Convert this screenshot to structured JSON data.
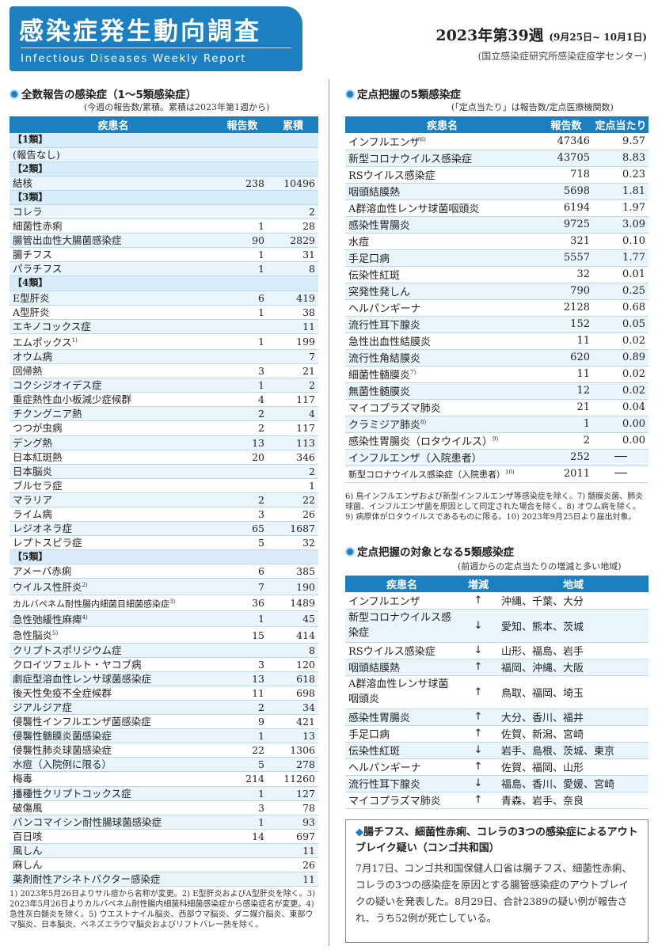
{
  "header": {
    "title_jp": "感染症発生動向調査",
    "title_en": "Infectious Diseases Weekly Report",
    "week": "2023年第39週",
    "date_range": "(9月25日~ 10月1日)",
    "institute": "(国立感染症研究所感染症疫学センター)"
  },
  "sec1": {
    "title": "全数報告の感染症（1～5類感染症）",
    "note": "(今週の報告数/累積。累積は2023年第1週から)",
    "cols": [
      "疾患名",
      "報告数",
      "累積"
    ],
    "rows": [
      {
        "n": "【1類】",
        "cat": true
      },
      {
        "n": "(報告なし)",
        "a": "",
        "b": ""
      },
      {
        "n": "【2類】",
        "cat": true
      },
      {
        "n": "結核",
        "a": "238",
        "b": "10496"
      },
      {
        "n": "【3類】",
        "cat": true
      },
      {
        "n": "コレラ",
        "a": "",
        "b": "2"
      },
      {
        "n": "細菌性赤痢",
        "a": "1",
        "b": "28"
      },
      {
        "n": "腸管出血性大腸菌感染症",
        "a": "90",
        "b": "2829"
      },
      {
        "n": "腸チフス",
        "a": "1",
        "b": "31"
      },
      {
        "n": "パラチフス",
        "a": "1",
        "b": "8"
      },
      {
        "n": "【4類】",
        "cat": true
      },
      {
        "n": "E型肝炎",
        "a": "6",
        "b": "419"
      },
      {
        "n": "A型肝炎",
        "a": "1",
        "b": "38"
      },
      {
        "n": "エキノコックス症",
        "a": "",
        "b": "11"
      },
      {
        "n": "エムポックス",
        "s": "1)",
        "a": "1",
        "b": "199"
      },
      {
        "n": "オウム病",
        "a": "",
        "b": "7"
      },
      {
        "n": "回帰熱",
        "a": "3",
        "b": "21"
      },
      {
        "n": "コクシジオイデス症",
        "a": "1",
        "b": "2"
      },
      {
        "n": "重症熱性血小板減少症候群",
        "a": "4",
        "b": "117"
      },
      {
        "n": "チクングニア熱",
        "a": "2",
        "b": "4"
      },
      {
        "n": "つつが虫病",
        "a": "2",
        "b": "117"
      },
      {
        "n": "デング熱",
        "a": "13",
        "b": "113"
      },
      {
        "n": "日本紅斑熱",
        "a": "20",
        "b": "346"
      },
      {
        "n": "日本脳炎",
        "a": "",
        "b": "2"
      },
      {
        "n": "ブルセラ症",
        "a": "",
        "b": "1"
      },
      {
        "n": "マラリア",
        "a": "2",
        "b": "22"
      },
      {
        "n": "ライム病",
        "a": "3",
        "b": "26"
      },
      {
        "n": "レジオネラ症",
        "a": "65",
        "b": "1687"
      },
      {
        "n": "レプトスピラ症",
        "a": "5",
        "b": "32"
      },
      {
        "n": "【5類】",
        "cat": true
      },
      {
        "n": "アメーバ赤痢",
        "a": "6",
        "b": "385"
      },
      {
        "n": "ウイルス性肝炎",
        "s": "2)",
        "a": "7",
        "b": "190"
      },
      {
        "n": "カルバペネム耐性腸内細菌目細菌感染症",
        "s": "3)",
        "a": "36",
        "b": "1489"
      },
      {
        "n": "急性弛緩性麻痺",
        "s": "4)",
        "a": "1",
        "b": "45"
      },
      {
        "n": "急性脳炎",
        "s": "5)",
        "a": "15",
        "b": "414"
      },
      {
        "n": "クリプトスポリジウム症",
        "a": "",
        "b": "8"
      },
      {
        "n": "クロイツフェルト・ヤコブ病",
        "a": "3",
        "b": "120"
      },
      {
        "n": "劇症型溶血性レンサ球菌感染症",
        "a": "13",
        "b": "618"
      },
      {
        "n": "後天性免疫不全症候群",
        "a": "11",
        "b": "698"
      },
      {
        "n": "ジアルジア症",
        "a": "2",
        "b": "34"
      },
      {
        "n": "侵襲性インフルエンザ菌感染症",
        "a": "9",
        "b": "421"
      },
      {
        "n": "侵襲性髄膜炎菌感染症",
        "a": "1",
        "b": "13"
      },
      {
        "n": "侵襲性肺炎球菌感染症",
        "a": "22",
        "b": "1306"
      },
      {
        "n": "水痘（入院例に限る）",
        "a": "5",
        "b": "278"
      },
      {
        "n": "梅毒",
        "a": "214",
        "b": "11260"
      },
      {
        "n": "播種性クリプトコックス症",
        "a": "1",
        "b": "127"
      },
      {
        "n": "破傷風",
        "a": "3",
        "b": "78"
      },
      {
        "n": "バンコマイシン耐性腸球菌感染症",
        "a": "1",
        "b": "93"
      },
      {
        "n": "百日咳",
        "a": "14",
        "b": "697"
      },
      {
        "n": "風しん",
        "a": "",
        "b": "11"
      },
      {
        "n": "麻しん",
        "a": "",
        "b": "26"
      },
      {
        "n": "薬剤耐性アシネトバクター感染症",
        "a": "",
        "b": "11"
      }
    ],
    "footnote": "1) 2023年5月26日よりサル痘から名称が変更。2) E型肝炎およびA型肝炎を除く。3) 2023年5月26日よりカルバペネム耐性腸内細菌科細菌感染症から感染症名が変更。4) 急性灰白髄炎を除く。5) ウエストナイル脳炎、西部ウマ脳炎、ダニ媒介脳炎、東部ウマ脳炎、日本脳炎、ベネズエラウマ脳炎およびリフトバレー熱を除く。"
  },
  "sec2": {
    "title": "定点把握の5類感染症",
    "note": "(「定点当たり」は報告数/定点医療機関数)",
    "cols": [
      "疾患名",
      "報告数",
      "定点当たり"
    ],
    "rows": [
      {
        "n": "インフルエンザ",
        "s": "6)",
        "a": "47346",
        "b": "9.57"
      },
      {
        "n": "新型コロナウイルス感染症",
        "a": "43705",
        "b": "8.83"
      },
      {
        "n": "RSウイルス感染症",
        "a": "718",
        "b": "0.23"
      },
      {
        "n": "咽頭結膜熱",
        "a": "5698",
        "b": "1.81"
      },
      {
        "n": "A群溶血性レンサ球菌咽頭炎",
        "a": "6194",
        "b": "1.97"
      },
      {
        "n": "感染性胃腸炎",
        "a": "9725",
        "b": "3.09"
      },
      {
        "n": "水痘",
        "a": "321",
        "b": "0.10"
      },
      {
        "n": "手足口病",
        "a": "5557",
        "b": "1.77"
      },
      {
        "n": "伝染性紅斑",
        "a": "32",
        "b": "0.01"
      },
      {
        "n": "突発性発しん",
        "a": "790",
        "b": "0.25"
      },
      {
        "n": "ヘルパンギーナ",
        "a": "2128",
        "b": "0.68"
      },
      {
        "n": "流行性耳下腺炎",
        "a": "152",
        "b": "0.05"
      },
      {
        "n": "急性出血性結膜炎",
        "a": "11",
        "b": "0.02"
      },
      {
        "n": "流行性角結膜炎",
        "a": "620",
        "b": "0.89"
      },
      {
        "n": "細菌性髄膜炎",
        "s": "7)",
        "a": "11",
        "b": "0.02"
      },
      {
        "n": "無菌性髄膜炎",
        "a": "12",
        "b": "0.02"
      },
      {
        "n": "マイコプラズマ肺炎",
        "a": "21",
        "b": "0.04"
      },
      {
        "n": "クラミジア肺炎",
        "s": "8)",
        "a": "1",
        "b": "0.00"
      },
      {
        "n": "感染性胃腸炎（ロタウイルス）",
        "s": "9)",
        "a": "2",
        "b": "0.00"
      },
      {
        "n": "インフルエンザ（入院患者）",
        "a": "252",
        "b": "──"
      },
      {
        "n": "新型コロナウイルス感染症（入院患者）",
        "s": "10)",
        "a": "2011",
        "b": "──"
      }
    ],
    "footnote": "6) 鳥インフルエンザおよび新型インフルエンザ等感染症を除く。7) 髄膜炎菌、肺炎球菌、インフルエンザ菌を原因として同定された場合を除く。8) オウム病を除く。9) 病原体がロタウイルスであるものに限る。10) 2023年9月25日より届出対象。"
  },
  "sec3": {
    "title": "定点把握の対象となる5類感染症",
    "note": "(前週からの定点当たりの増減と多い地域)",
    "cols": [
      "疾患名",
      "増減",
      "地域"
    ],
    "rows": [
      {
        "n": "インフルエンザ",
        "d": "↑",
        "r": "沖縄、千葉、大分"
      },
      {
        "n": "新型コロナウイルス感染症",
        "d": "↓",
        "r": "愛知、熊本、茨城"
      },
      {
        "n": "RSウイルス感染症",
        "d": "↓",
        "r": "山形、福島、岩手"
      },
      {
        "n": "咽頭結膜熱",
        "d": "↑",
        "r": "福岡、沖縄、大阪"
      },
      {
        "n": "A群溶血性レンサ球菌咽頭炎",
        "d": "↑",
        "r": "鳥取、福岡、埼玉"
      },
      {
        "n": "感染性胃腸炎",
        "d": "↑",
        "r": "大分、香川、福井"
      },
      {
        "n": "手足口病",
        "d": "↑",
        "r": "佐賀、新潟、宮崎"
      },
      {
        "n": "伝染性紅斑",
        "d": "↓",
        "r": "岩手、島根、茨城、東京"
      },
      {
        "n": "ヘルパンギーナ",
        "d": "↑",
        "r": "佐賀、福岡、山形"
      },
      {
        "n": "流行性耳下腺炎",
        "d": "↓",
        "r": "福島、香川、愛媛、宮崎"
      },
      {
        "n": "マイコプラズマ肺炎",
        "d": "↑",
        "r": "青森、岩手、奈良"
      }
    ]
  },
  "news": {
    "headline": "腸チフス、細菌性赤痢、コレラの3つの感染症によるアウトブレイク疑い（コンゴ共和国）",
    "body": "7月17日、コンゴ共和国保健人口省は腸チフス、細菌性赤痢、コレラの3つの感染症を原因とする腸管感染症のアウトブレイクの疑いを発表した。8月29日、合計2389の疑い例が報告され、うち52例が死亡している。"
  }
}
